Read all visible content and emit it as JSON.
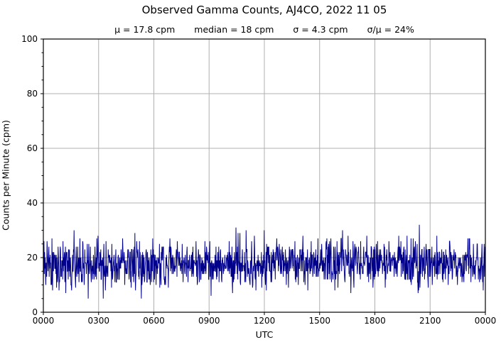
{
  "chart_data": {
    "type": "line",
    "title": "Observed Gamma Counts, AJ4CO, 2022 11 05",
    "stats": [
      "μ = 17.8 cpm",
      "median = 18 cpm",
      "σ = 4.3 cpm",
      "σ/μ = 24%"
    ],
    "xlabel": "UTC",
    "ylabel": "Counts per Minute (cpm)",
    "xticklabels": [
      "0000",
      "0300",
      "0600",
      "0900",
      "1200",
      "1500",
      "1800",
      "2100",
      "0000"
    ],
    "yticks": [
      0,
      20,
      40,
      60,
      80,
      100
    ],
    "yticklabels": [
      "0",
      "20",
      "40",
      "60",
      "80",
      "100"
    ],
    "ylim": [
      0,
      100
    ],
    "y_minor_step": 5,
    "grid": true,
    "legend_visible": false,
    "line_color": "#00008b",
    "grid_color": "#b0b0b0",
    "axis_color": "#000000",
    "background_color": "#ffffff",
    "series": [
      {
        "name": "observed-gamma-counts",
        "samples_per_day": 1440,
        "mean_cpm": 17.8,
        "median_cpm": 18,
        "sigma_cpm": 4.3,
        "observed_min_cpm": 5,
        "observed_max_cpm": 33,
        "seed": 20221105
      }
    ]
  }
}
